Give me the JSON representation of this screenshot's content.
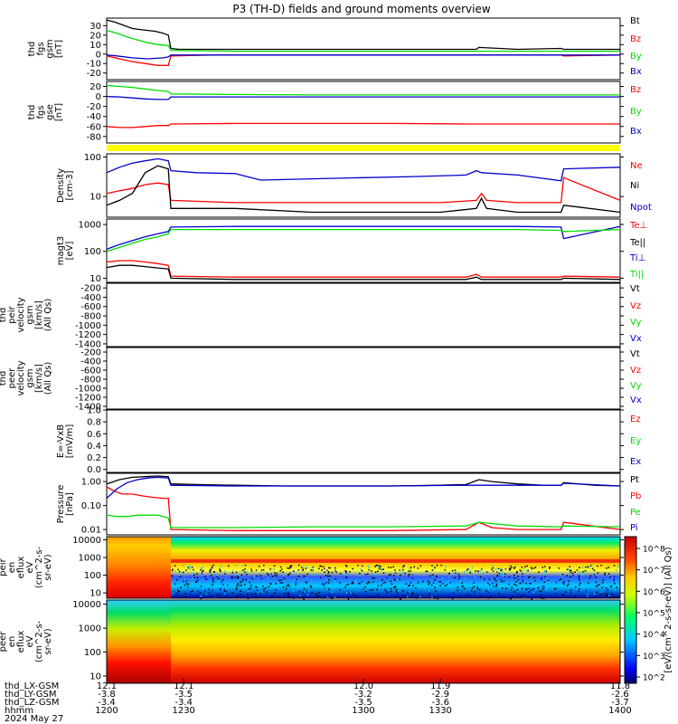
{
  "title": "P3 (TH-D) fields and ground moments overview",
  "date_label": "2024 May 27",
  "colors": {
    "black": "#000000",
    "red": "#ff0000",
    "green": "#00dd00",
    "blue": "#0000cc",
    "yellow": "#ffff00"
  },
  "chart_data": [
    {
      "type": "line",
      "ylabel": [
        "thd",
        "fgs",
        "gsm",
        "[nT]"
      ],
      "yticks": [
        "30",
        "20",
        "10",
        "0",
        "-10",
        "-20"
      ],
      "ylim": [
        -27,
        38
      ],
      "series": [
        {
          "name": "Bt",
          "color": "black",
          "t": [
            1200,
            1203,
            1207,
            1210,
            1213,
            1216,
            1219,
            1222,
            1224,
            1225,
            1228,
            1235,
            1245,
            1260,
            1275,
            1290,
            1310,
            1330,
            1344,
            1345,
            1360,
            1377,
            1378,
            1400
          ],
          "v": [
            36,
            34,
            30,
            27,
            26,
            25,
            24,
            22,
            20,
            6,
            5,
            5,
            5,
            5,
            5,
            5,
            5,
            5,
            5,
            7,
            5,
            6,
            5,
            5
          ]
        },
        {
          "name": "Bz",
          "color": "red",
          "t": [
            1200,
            1205,
            1210,
            1215,
            1220,
            1224,
            1225,
            1240,
            1270,
            1300,
            1330,
            1360,
            1377,
            1378,
            1400
          ],
          "v": [
            -2,
            -5,
            -8,
            -10,
            -12,
            -12,
            -2,
            -1,
            -1,
            -1,
            -1,
            -1,
            -1,
            -2,
            -1
          ]
        },
        {
          "name": "By",
          "color": "green",
          "t": [
            1200,
            1204,
            1208,
            1212,
            1216,
            1220,
            1224,
            1225,
            1250,
            1280,
            1310,
            1340,
            1370,
            1400
          ],
          "v": [
            25,
            22,
            18,
            15,
            12,
            10,
            9,
            4,
            3,
            3,
            3,
            3,
            3,
            3
          ]
        },
        {
          "name": "Bx",
          "color": "blue",
          "t": [
            1200,
            1204,
            1210,
            1216,
            1222,
            1224,
            1225,
            1250,
            1280,
            1310,
            1340,
            1370,
            1400
          ],
          "v": [
            -1,
            -2,
            -4,
            -5,
            -4,
            -3,
            -1,
            -1,
            -1,
            -1,
            -1,
            -1,
            -1
          ]
        }
      ]
    },
    {
      "type": "line",
      "ylabel": [
        "thd",
        "fgs",
        "gse",
        "[nT]"
      ],
      "yticks": [
        "20",
        "0",
        "-20",
        "-40",
        "-60",
        "-80"
      ],
      "ylim": [
        -93,
        30
      ],
      "series": [
        {
          "name": "Bz",
          "color": "red",
          "t": [
            1200,
            1205,
            1210,
            1215,
            1220,
            1224,
            1225,
            1250,
            1280,
            1310,
            1340,
            1370,
            1400
          ],
          "v": [
            -60,
            -62,
            -62,
            -60,
            -58,
            -58,
            -55,
            -54,
            -54,
            -54,
            -55,
            -55,
            -55
          ]
        },
        {
          "name": "By",
          "color": "green",
          "t": [
            1200,
            1205,
            1210,
            1215,
            1220,
            1224,
            1225,
            1250,
            1280,
            1310,
            1340,
            1370,
            1400
          ],
          "v": [
            22,
            20,
            18,
            15,
            12,
            10,
            5,
            4,
            3,
            3,
            3,
            3,
            3
          ]
        },
        {
          "name": "Bx",
          "color": "blue",
          "t": [
            1200,
            1205,
            1210,
            1215,
            1220,
            1224,
            1225,
            1250,
            1280,
            1310,
            1340,
            1370,
            1400
          ],
          "v": [
            0,
            -1,
            -3,
            -5,
            -6,
            -6,
            -1,
            -1,
            -1,
            -1,
            -1,
            -1,
            -1
          ]
        }
      ]
    },
    {
      "type": "line",
      "scale": "log",
      "ylabel": [
        "Density",
        "[cm-3]"
      ],
      "yticks": [
        "100",
        "10"
      ],
      "ylim": [
        3,
        120
      ],
      "series": [
        {
          "name": "Ne",
          "color": "red",
          "t": [
            1200,
            1205,
            1210,
            1215,
            1220,
            1224,
            1225,
            1250,
            1280,
            1310,
            1330,
            1344,
            1346,
            1348,
            1360,
            1377,
            1378,
            1400
          ],
          "v": [
            12,
            14,
            16,
            20,
            22,
            20,
            8,
            7,
            7,
            7,
            7,
            8,
            12,
            8,
            7,
            7,
            30,
            8
          ]
        },
        {
          "name": "Ni",
          "color": "black",
          "t": [
            1200,
            1205,
            1210,
            1215,
            1220,
            1224,
            1225,
            1250,
            1280,
            1310,
            1330,
            1344,
            1346,
            1348,
            1360,
            1377,
            1378,
            1400
          ],
          "v": [
            6,
            8,
            12,
            40,
            60,
            50,
            5,
            5,
            4,
            4,
            4,
            5,
            9,
            5,
            4,
            4,
            6,
            4
          ]
        },
        {
          "name": "Npot",
          "color": "blue",
          "t": [
            1200,
            1205,
            1210,
            1215,
            1220,
            1224,
            1225,
            1235,
            1250,
            1260,
            1280,
            1300,
            1320,
            1340,
            1344,
            1346,
            1360,
            1377,
            1378,
            1400
          ],
          "v": [
            40,
            55,
            70,
            80,
            90,
            80,
            45,
            40,
            38,
            26,
            28,
            30,
            32,
            35,
            45,
            40,
            35,
            25,
            50,
            55
          ]
        }
      ]
    },
    {
      "type": "line",
      "scale": "log",
      "ylabel": [
        "magt3",
        "[eV]"
      ],
      "yticks": [
        "1000",
        "100",
        "10"
      ],
      "ylim": [
        7,
        1600
      ],
      "series": [
        {
          "name": "Te⊥",
          "color": "red",
          "t": [
            1200,
            1205,
            1210,
            1215,
            1220,
            1224,
            1225,
            1250,
            1280,
            1310,
            1340,
            1344,
            1346,
            1360,
            1377,
            1378,
            1400
          ],
          "v": [
            40,
            45,
            45,
            40,
            35,
            30,
            12,
            11,
            11,
            11,
            11,
            14,
            11,
            11,
            11,
            12,
            11
          ]
        },
        {
          "name": "Te||",
          "color": "black",
          "t": [
            1200,
            1205,
            1210,
            1215,
            1220,
            1224,
            1225,
            1250,
            1280,
            1310,
            1340,
            1344,
            1346,
            1360,
            1377,
            1378,
            1400
          ],
          "v": [
            25,
            30,
            30,
            27,
            24,
            22,
            10,
            9,
            9,
            9,
            9,
            11,
            9,
            9,
            9,
            10,
            9
          ]
        },
        {
          "name": "Ti⊥",
          "color": "blue",
          "t": [
            1200,
            1205,
            1210,
            1215,
            1220,
            1224,
            1225,
            1250,
            1280,
            1310,
            1340,
            1360,
            1377,
            1378,
            1400
          ],
          "v": [
            120,
            180,
            250,
            350,
            450,
            550,
            800,
            850,
            850,
            850,
            850,
            850,
            800,
            300,
            850
          ]
        },
        {
          "name": "Ti||",
          "color": "green",
          "t": [
            1200,
            1205,
            1210,
            1215,
            1220,
            1224,
            1225,
            1250,
            1280,
            1310,
            1340,
            1360,
            1377,
            1378,
            1400
          ],
          "v": [
            100,
            140,
            200,
            280,
            350,
            450,
            650,
            650,
            650,
            650,
            650,
            650,
            600,
            550,
            650
          ]
        }
      ]
    },
    {
      "type": "line",
      "ylabel": [
        "thd",
        "peir",
        "velocity",
        "gsm",
        "[km/s]",
        "(All Qs)"
      ],
      "yticks": [
        "-200",
        "-400",
        "-600",
        "-800",
        "-1000",
        "-1200",
        "-1400"
      ],
      "ylim": [
        -1460,
        -100
      ],
      "legend": [
        "Vt",
        "Vz",
        "Vy",
        "Vx"
      ],
      "series": []
    },
    {
      "type": "line",
      "ylabel": [
        "thd",
        "peer",
        "velocity",
        "gsm",
        "[km/s]",
        "(All Qs)"
      ],
      "yticks": [
        "-200",
        "-400",
        "-600",
        "-800",
        "-1000",
        "-1200",
        "-1400"
      ],
      "ylim": [
        -1460,
        -100
      ],
      "legend": [
        "Vt",
        "Vz",
        "Vy",
        "Vx"
      ],
      "series": []
    },
    {
      "type": "line",
      "ylabel": [
        "E=-VxB",
        "[mV/m]"
      ],
      "yticks": [
        "1.0",
        "0.8",
        "0.6",
        "0.4",
        "0.2",
        "0.0"
      ],
      "ylim": [
        -0.05,
        1.0
      ],
      "legend": [
        "Ez",
        "Ey",
        "Ex"
      ],
      "series": []
    },
    {
      "type": "line",
      "scale": "log",
      "ylabel": [
        "Pressure",
        "[nPa]"
      ],
      "yticks": [
        "1.00",
        "0.10",
        "0.01"
      ],
      "ylim": [
        0.006,
        2.2
      ],
      "series": [
        {
          "name": "Pt",
          "color": "black",
          "t": [
            1200,
            1205,
            1210,
            1215,
            1220,
            1224,
            1225,
            1235,
            1250,
            1270,
            1290,
            1310,
            1330,
            1340,
            1345,
            1350,
            1360,
            1370,
            1377,
            1378,
            1390,
            1400
          ],
          "v": [
            0.8,
            1.2,
            1.5,
            1.6,
            1.7,
            1.6,
            0.8,
            0.75,
            0.7,
            0.65,
            0.65,
            0.65,
            0.7,
            0.75,
            1.2,
            1.0,
            0.8,
            0.7,
            0.7,
            0.9,
            0.7,
            0.65
          ]
        },
        {
          "name": "Pb",
          "color": "red",
          "t": [
            1200,
            1203,
            1206,
            1210,
            1214,
            1218,
            1222,
            1224,
            1225,
            1250,
            1280,
            1310,
            1340,
            1345,
            1350,
            1360,
            1377,
            1378,
            1400
          ],
          "v": [
            0.6,
            0.4,
            0.3,
            0.3,
            0.25,
            0.22,
            0.2,
            0.2,
            0.01,
            0.009,
            0.009,
            0.009,
            0.01,
            0.02,
            0.012,
            0.01,
            0.01,
            0.02,
            0.01
          ]
        },
        {
          "name": "Pe",
          "color": "green",
          "t": [
            1200,
            1204,
            1208,
            1212,
            1216,
            1220,
            1224,
            1225,
            1250,
            1280,
            1310,
            1340,
            1345,
            1360,
            1377,
            1378,
            1400
          ],
          "v": [
            0.04,
            0.035,
            0.035,
            0.04,
            0.04,
            0.04,
            0.03,
            0.012,
            0.012,
            0.013,
            0.013,
            0.014,
            0.02,
            0.014,
            0.013,
            0.014,
            0.013
          ]
        },
        {
          "name": "Pi",
          "color": "blue",
          "t": [
            1200,
            1204,
            1208,
            1212,
            1216,
            1220,
            1224,
            1225,
            1250,
            1280,
            1310,
            1340,
            1360,
            1377,
            1378,
            1400
          ],
          "v": [
            0.2,
            0.5,
            0.9,
            1.2,
            1.4,
            1.5,
            1.4,
            0.7,
            0.65,
            0.65,
            0.65,
            0.7,
            0.7,
            0.7,
            0.85,
            0.65
          ]
        }
      ]
    },
    {
      "type": "heatmap",
      "ylabel": [
        "thd",
        "peir",
        "en",
        "eflux",
        "eV",
        "(cm^2-s-",
        "sr-eV)"
      ],
      "yticks": [
        "10000",
        "1000",
        "100",
        "10"
      ],
      "ylim": [
        5,
        15000
      ]
    },
    {
      "type": "heatmap",
      "ylabel": [
        "thd",
        "peer",
        "en",
        "eflux",
        "eV",
        "(cm^2-s-",
        "sr-eV)"
      ],
      "yticks": [
        "10000",
        "1000",
        "100",
        "10"
      ],
      "ylim": [
        5,
        15000
      ]
    }
  ],
  "legends": [
    [
      {
        "text": "Bt",
        "color": "black"
      },
      {
        "text": "Bz",
        "color": "red"
      },
      {
        "text": "By",
        "color": "green"
      },
      {
        "text": "Bx",
        "color": "blue"
      }
    ],
    [
      {
        "text": "Bz",
        "color": "red"
      },
      {
        "text": "By",
        "color": "green"
      },
      {
        "text": "Bx",
        "color": "blue"
      }
    ],
    [
      {
        "text": "Ne",
        "color": "red"
      },
      {
        "text": "Ni",
        "color": "black"
      },
      {
        "text": "Npot",
        "color": "blue"
      }
    ],
    [
      {
        "text": "Te⊥",
        "color": "red"
      },
      {
        "text": "Te||",
        "color": "black"
      },
      {
        "text": "Ti⊥",
        "color": "blue"
      },
      {
        "text": "Ti||",
        "color": "green"
      }
    ],
    [
      {
        "text": "Vt",
        "color": "black"
      },
      {
        "text": "Vz",
        "color": "red"
      },
      {
        "text": "Vy",
        "color": "green"
      },
      {
        "text": "Vx",
        "color": "blue"
      }
    ],
    [
      {
        "text": "Vt",
        "color": "black"
      },
      {
        "text": "Vz",
        "color": "red"
      },
      {
        "text": "Vy",
        "color": "green"
      },
      {
        "text": "Vx",
        "color": "blue"
      }
    ],
    [
      {
        "text": "Ez",
        "color": "red"
      },
      {
        "text": "Ey",
        "color": "green"
      },
      {
        "text": "Ex",
        "color": "blue"
      }
    ],
    [
      {
        "text": "Pt",
        "color": "black"
      },
      {
        "text": "Pb",
        "color": "red"
      },
      {
        "text": "Pe",
        "color": "green"
      },
      {
        "text": "Pi",
        "color": "blue"
      }
    ]
  ],
  "colorbar": {
    "label": "[eV/(cm^2-s-sr-eV)] (All Qs)",
    "ticks": [
      "10^8",
      "10^7",
      "10^6",
      "10^5",
      "10^4",
      "10^3",
      "10^2"
    ]
  },
  "x_axis": {
    "row_labels": [
      "thd_LX-GSM",
      "thd_LY-GSM",
      "thd_LZ-GSM",
      "hhmm"
    ],
    "columns": [
      [
        "12.1",
        "-3.8",
        "-3.4",
        "1200"
      ],
      [
        "12.1",
        "-3.5",
        "-3.4",
        "1230"
      ],
      [
        "12.0",
        "-3.2",
        "-3.5",
        "1300"
      ],
      [
        "11.9",
        "-2.9",
        "-3.6",
        "1330"
      ],
      [
        "11.8",
        "-2.6",
        "-3.7",
        "1400"
      ]
    ]
  }
}
